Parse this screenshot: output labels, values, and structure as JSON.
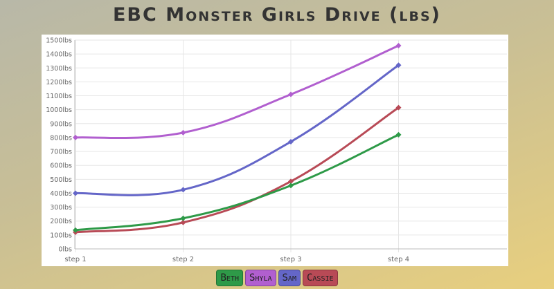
{
  "title": "EBC Monster Girls Drive (lbs)",
  "chart_data": {
    "type": "line",
    "title": "EBC Monster Girls Drive (lbs)",
    "categories": [
      "step 1",
      "step 2",
      "step 3",
      "step 4"
    ],
    "yticks": [
      "0lbs",
      "100lbs",
      "200lbs",
      "300lbs",
      "400lbs",
      "500lbs",
      "600lbs",
      "700lbs",
      "800lbs",
      "900lbs",
      "1000lbs",
      "1100lbs",
      "1200lbs",
      "1300lbs",
      "1400lbs",
      "1500lbs"
    ],
    "ylim": [
      0,
      1500
    ],
    "grid": true,
    "legend_position": "bottom",
    "series": [
      {
        "name": "Beth",
        "color": "#2e9a48",
        "values": [
          135,
          220,
          455,
          820
        ]
      },
      {
        "name": "Shyla",
        "color": "#b15fcf",
        "values": [
          800,
          835,
          1110,
          1460
        ]
      },
      {
        "name": "Sam",
        "color": "#6466c8",
        "values": [
          400,
          425,
          770,
          1320
        ]
      },
      {
        "name": "Cassie",
        "color": "#b84a56",
        "values": [
          120,
          190,
          485,
          1015
        ]
      }
    ]
  }
}
